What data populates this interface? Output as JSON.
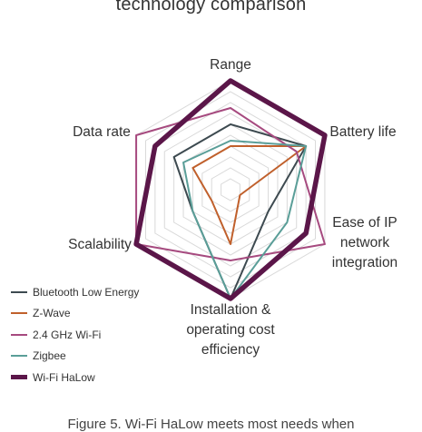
{
  "chart_data": {
    "type": "radar",
    "title": "technology comparison",
    "axes": [
      [
        "Range"
      ],
      [
        "Battery life"
      ],
      [
        "Ease of IP",
        "network",
        "integration"
      ],
      [
        "Installation &",
        "operating cost",
        "efficiency"
      ],
      [
        "Scalability"
      ],
      [
        "Data rate"
      ]
    ],
    "rlim": [
      0,
      10
    ],
    "grid_levels": 10,
    "series": [
      {
        "name": "Bluetooth Low Energy",
        "color": "#3d4a50",
        "width": 2,
        "values": [
          6,
          8,
          4,
          10,
          4,
          6
        ]
      },
      {
        "name": "Z-Wave",
        "color": "#c0602c",
        "width": 2,
        "values": [
          4,
          8,
          1,
          5,
          2,
          4
        ]
      },
      {
        "name": "2.4 GHz Wi-Fi",
        "color": "#a64a7f",
        "width": 2,
        "values": [
          7.5,
          7,
          10,
          6.5,
          10,
          10
        ]
      },
      {
        "name": "Zigbee",
        "color": "#5a9e98",
        "width": 2,
        "values": [
          4.5,
          8,
          6,
          10,
          4,
          5
        ]
      },
      {
        "name": "Wi-Fi HaLow",
        "color": "#5b1649",
        "width": 5.5,
        "values": [
          10,
          10,
          8,
          10,
          10,
          8
        ]
      }
    ],
    "legend_position": "bottom-left",
    "grid": true
  },
  "caption": "Figure 5. Wi-Fi HaLow meets most needs when"
}
